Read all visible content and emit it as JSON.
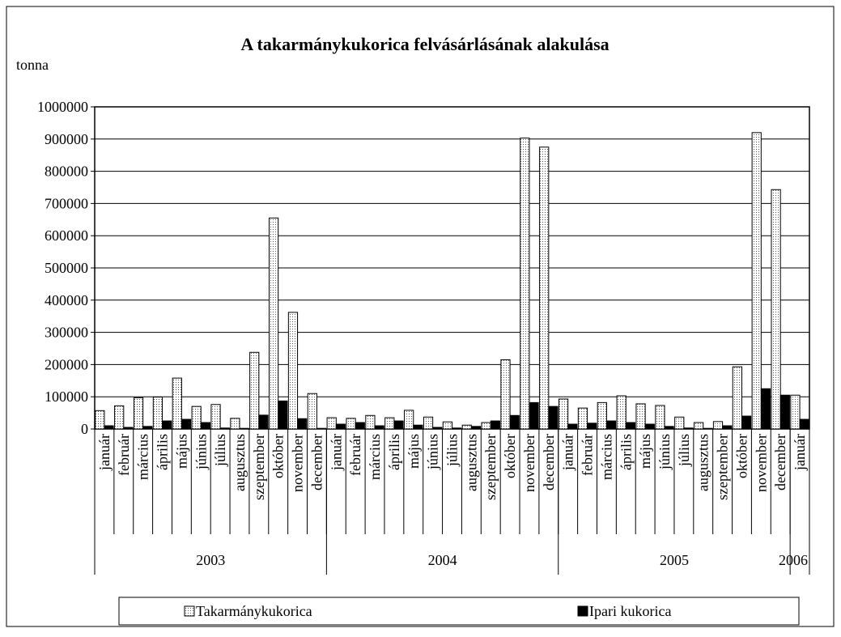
{
  "chart_data": {
    "type": "bar",
    "title": "A takarmánykukorica felvásárlásának alakulása",
    "y_label": "tonna",
    "category_groups": [
      {
        "name": "2003",
        "categories": [
          "január",
          "február",
          "március",
          "április",
          "május",
          "június",
          "július",
          "augusztus",
          "szeptember",
          "október",
          "november",
          "december"
        ]
      },
      {
        "name": "2004",
        "categories": [
          "január",
          "február",
          "március",
          "április",
          "május",
          "június",
          "július",
          "augusztus",
          "szeptember",
          "október",
          "november",
          "december"
        ]
      },
      {
        "name": "2005",
        "categories": [
          "január",
          "február",
          "március",
          "április",
          "május",
          "június",
          "július",
          "augusztus",
          "szeptember",
          "október",
          "november",
          "december"
        ]
      },
      {
        "name": "2006",
        "categories": [
          "január"
        ]
      }
    ],
    "series": [
      {
        "name": "Takarmánykukorica",
        "color": "#ffffff",
        "pattern": "dotted",
        "values": [
          57000,
          72000,
          97000,
          99000,
          158000,
          70000,
          76000,
          33000,
          238000,
          655000,
          362000,
          110000,
          35000,
          33000,
          42000,
          35000,
          58000,
          37000,
          22000,
          12000,
          20000,
          215000,
          903000,
          875000,
          93000,
          65000,
          82000,
          103000,
          78000,
          73000,
          37000,
          20000,
          23000,
          193000,
          920000,
          743000,
          105000
        ]
      },
      {
        "name": "Ipari kukorica",
        "color": "#000000",
        "values": [
          10000,
          5000,
          8000,
          25000,
          30000,
          20000,
          3000,
          2000,
          43000,
          87000,
          32000,
          2000,
          15000,
          20000,
          10000,
          25000,
          12000,
          5000,
          3000,
          8000,
          25000,
          42000,
          82000,
          70000,
          15000,
          18000,
          25000,
          20000,
          15000,
          8000,
          3000,
          2000,
          10000,
          40000,
          125000,
          105000,
          30000
        ]
      }
    ],
    "ylim": [
      0,
      1000000
    ],
    "yticks": [
      0,
      100000,
      200000,
      300000,
      400000,
      500000,
      600000,
      700000,
      800000,
      900000,
      1000000
    ],
    "grid": true,
    "legend": "bottom"
  }
}
